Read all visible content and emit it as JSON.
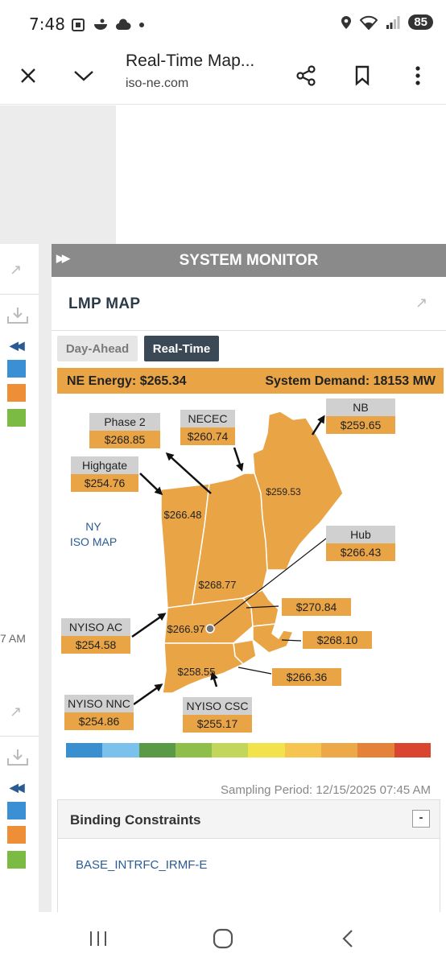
{
  "status_bar": {
    "time": "7:48",
    "battery": "85",
    "icons": [
      "screenshot-icon",
      "bowl-icon",
      "cloud-icon",
      "dot-icon",
      "location-icon",
      "wifi-icon",
      "signal-icon"
    ]
  },
  "browser": {
    "title": "Real-Time Map...",
    "url": "iso-ne.com",
    "icons": [
      "close-icon",
      "chevron-down-icon",
      "share-icon",
      "bookmark-icon",
      "more-vert-icon"
    ]
  },
  "left_panels": {
    "time_label": "7 AM",
    "swatch_colors": [
      "#3b8fd4",
      "#ee8e37",
      "#7cbb43"
    ]
  },
  "system_monitor": {
    "header": "SYSTEM MONITOR",
    "lmp_title": "LMP MAP",
    "tabs": {
      "day_ahead": "Day-Ahead",
      "real_time": "Real-Time"
    },
    "ne_energy": "NE Energy:  $265.34",
    "system_demand": "System Demand:  18153 MW",
    "map": {
      "ny_label_1": "NY",
      "ny_label_2": "ISO MAP",
      "regions": {
        "maine": "$259.53",
        "vermont": "$266.48",
        "new_hampshire": "$268.77",
        "wcma": "$266.97",
        "connecticut": "$258.55"
      },
      "interfaces": [
        {
          "name": "Phase 2",
          "price": "$268.85"
        },
        {
          "name": "NECEC",
          "price": "$260.74"
        },
        {
          "name": "NB",
          "price": "$259.65"
        },
        {
          "name": "Highgate",
          "price": "$254.76"
        },
        {
          "name": "Hub",
          "price": "$266.43"
        },
        {
          "name": "NYISO AC",
          "price": "$254.58"
        },
        {
          "name": "NYISO NNC",
          "price": "$254.86"
        },
        {
          "name": "NYISO CSC",
          "price": "$255.17"
        }
      ],
      "zone_prices": {
        "nemass": "$270.84",
        "semass": "$268.10",
        "ri": "$266.36"
      }
    },
    "color_scale": [
      "#3a8fd0",
      "#7ac1eb",
      "#5a9a46",
      "#8dbf4a",
      "#c2d65c",
      "#f2e34c",
      "#f5c451",
      "#eda947",
      "#e5823a",
      "#d9452e"
    ],
    "sampling_period": "Sampling Period: 12/15/2025 07:45 AM",
    "binding_constraints": {
      "title": "Binding Constraints",
      "collapse": "-",
      "items": [
        "BASE_INTRFC_IRMF-E"
      ]
    }
  },
  "nav": {
    "icons": [
      "recent-apps-icon",
      "home-icon",
      "back-icon"
    ]
  }
}
